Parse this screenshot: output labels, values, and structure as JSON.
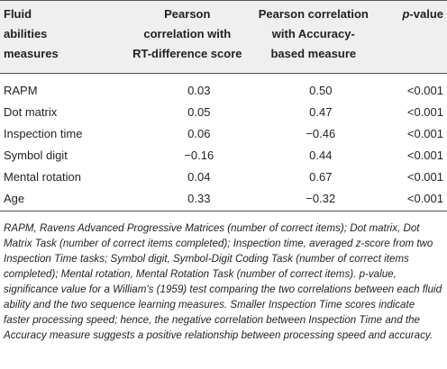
{
  "table": {
    "header": [
      [
        "Fluid",
        "abilities",
        "measures"
      ],
      [
        "Pearson",
        "correlation with",
        "RT-difference score"
      ],
      [
        "Pearson correlation",
        "with Accuracy-",
        "based measure"
      ],
      [
        "p-value"
      ]
    ],
    "rows": [
      [
        "RAPM",
        "0.03",
        "0.50",
        "<0.001"
      ],
      [
        "Dot matrix",
        "0.05",
        "0.47",
        "<0.001"
      ],
      [
        "Inspection time",
        "0.06",
        "−0.46",
        "<0.001"
      ],
      [
        "Symbol digit",
        "−0.16",
        "0.44",
        "<0.001"
      ],
      [
        "Mental rotation",
        "0.04",
        "0.67",
        "<0.001"
      ],
      [
        "Age",
        "0.33",
        "−0.32",
        "<0.001"
      ]
    ],
    "note": "RAPM, Ravens Advanced Progressive Matrices (number of correct items); Dot matrix, Dot Matrix Task (number of correct items completed); Inspection time, averaged z-score from two Inspection Time tasks; Symbol digit, Symbol-Digit Coding Task (number of correct items completed); Mental rotation, Mental Rotation Task (number of correct items). p-value, significance value for a William's (1959) test comparing the two correlations between each fluid ability and the two sequence learning measures. Smaller Inspection Time scores indicate faster processing speed; hence, the negative correlation between Inspection Time and the Accuracy measure suggests a positive relationship between processing speed and accuracy."
  }
}
